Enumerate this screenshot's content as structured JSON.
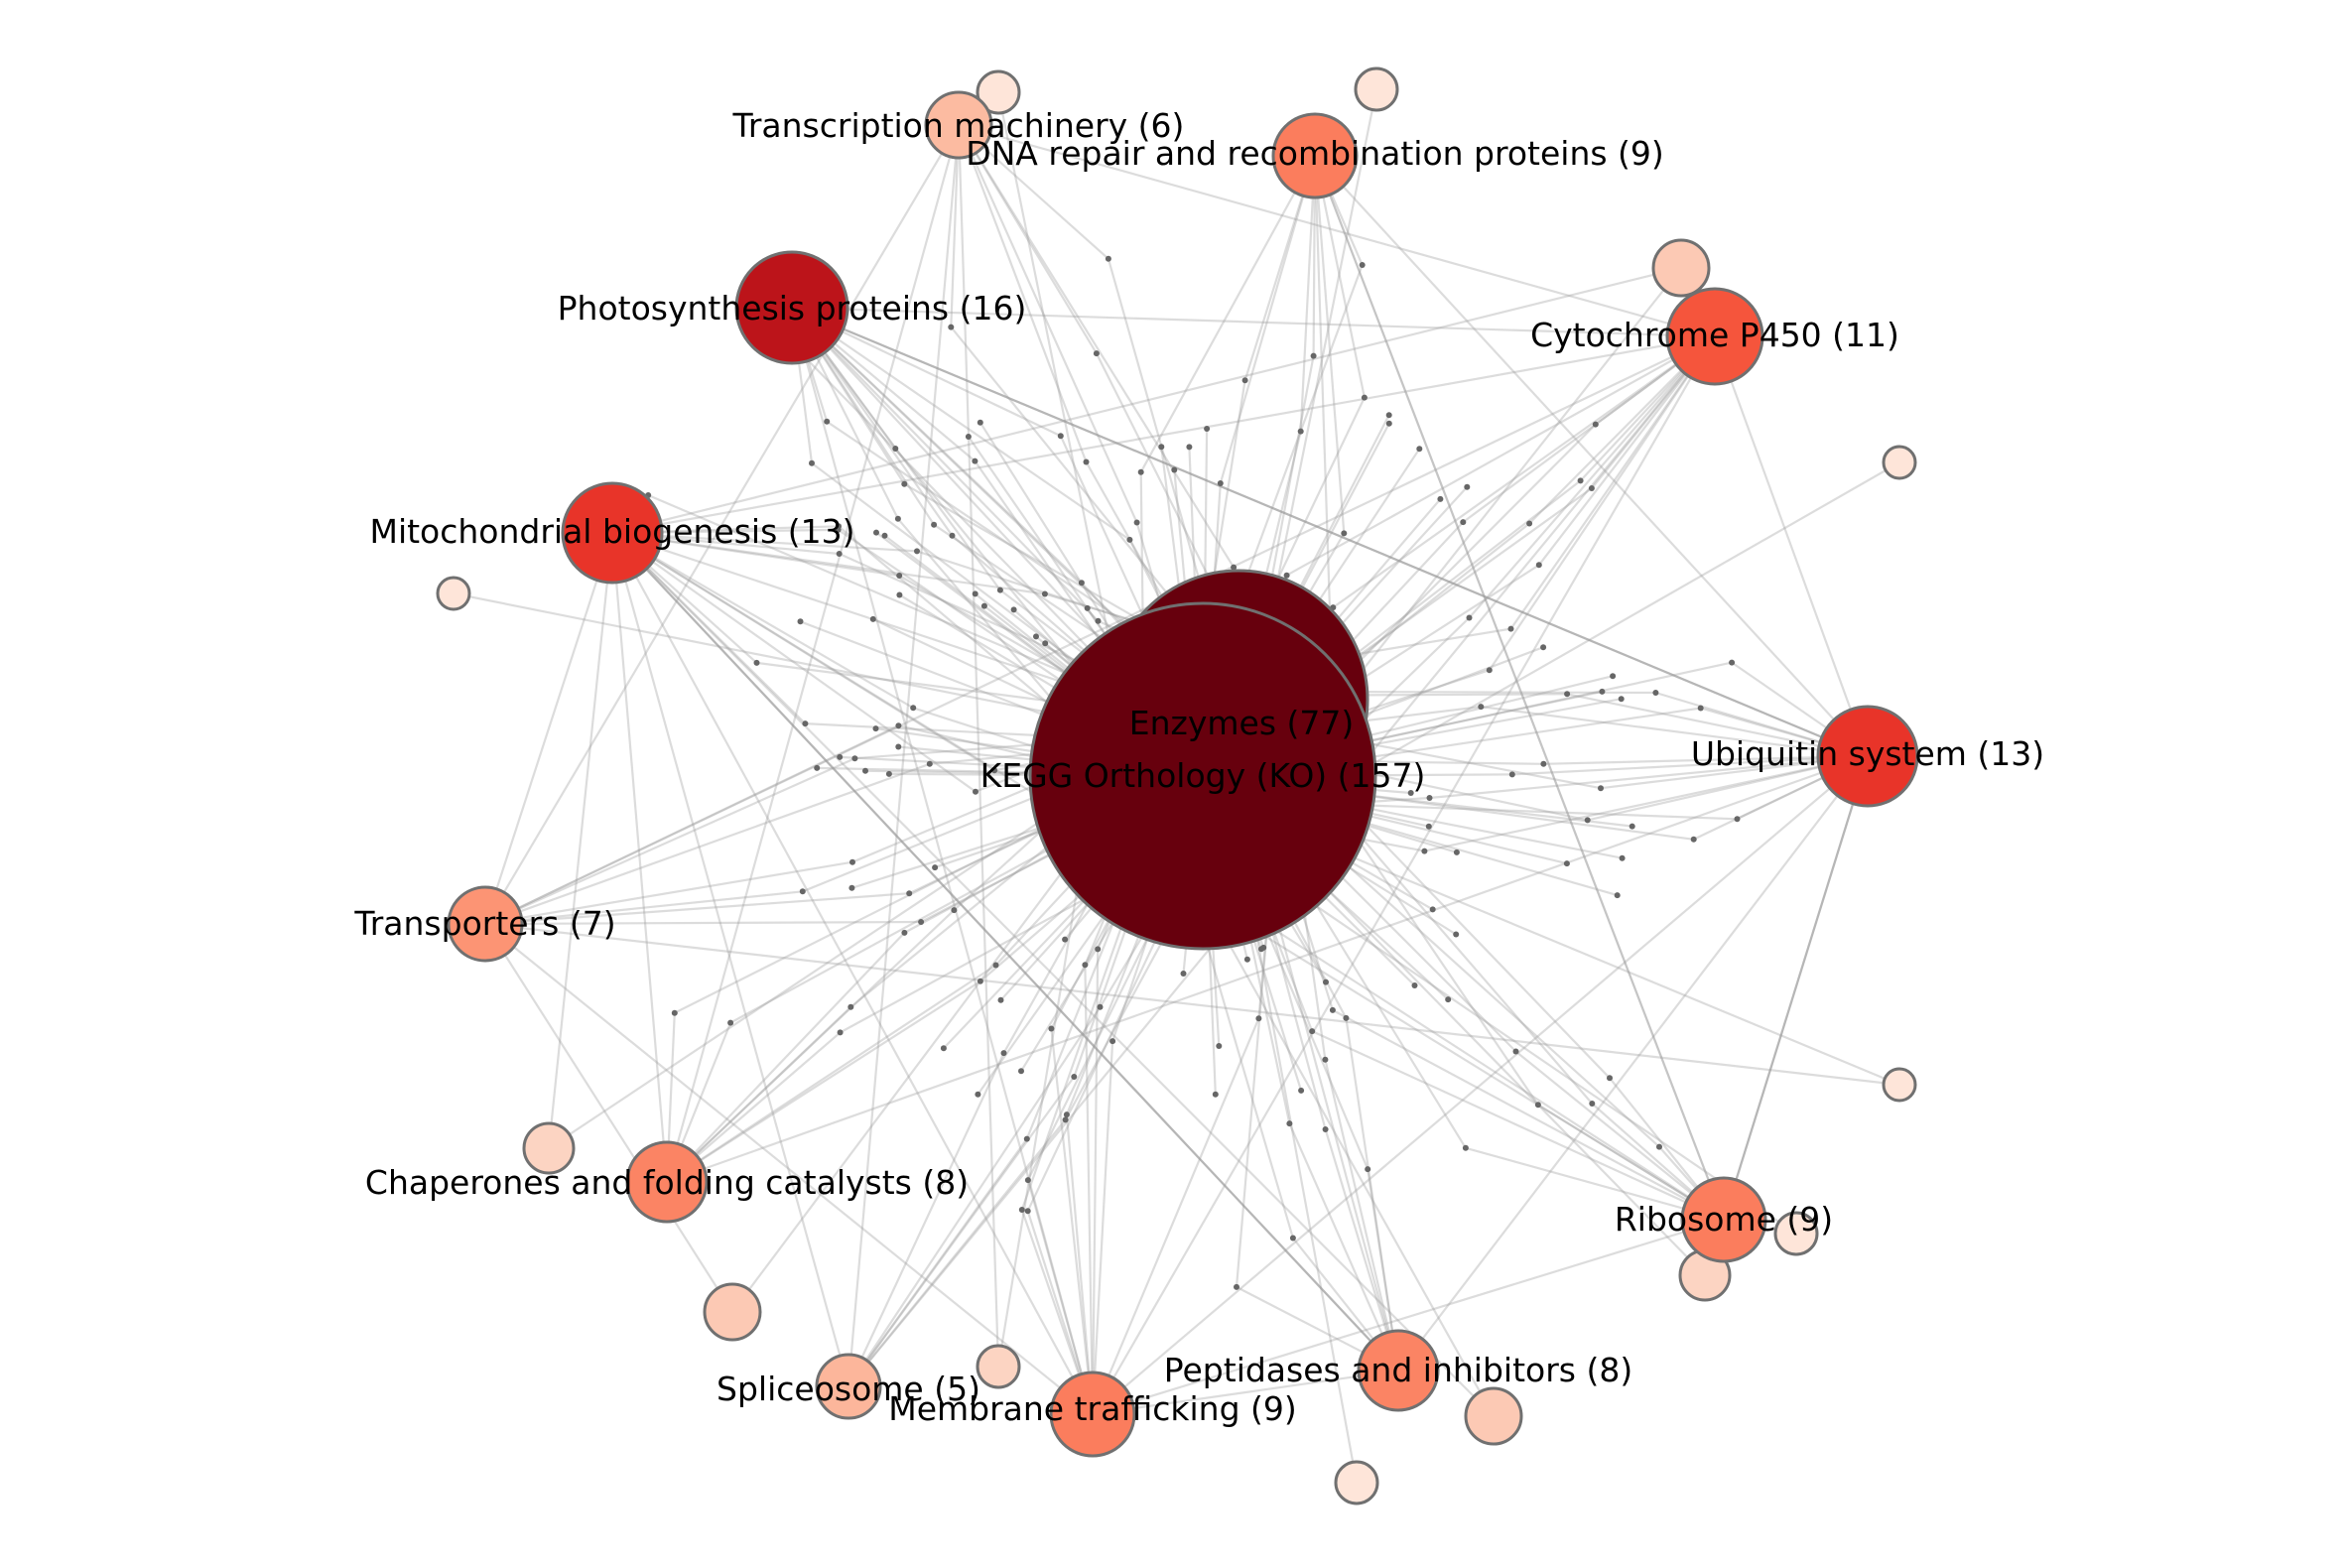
{
  "diagram": {
    "type": "network",
    "colors": {
      "background": "#ffffff",
      "edge": "#9a9a9a",
      "node_border": "#707070",
      "dot": "#666666"
    },
    "nodes": [
      {
        "id": "kegg",
        "label": "KEGG Orthology (KO) (157)",
        "count": 157,
        "color": "#67000d"
      },
      {
        "id": "enzymes",
        "label": "Enzymes (77)",
        "count": 77,
        "color": "#67000d"
      },
      {
        "id": "transcription",
        "label": "Transcription machinery (6)",
        "count": 6,
        "color": "#fcbba1"
      },
      {
        "id": "dna_repair",
        "label": "DNA repair and recombination proteins (9)",
        "count": 9,
        "color": "#fb7d5d"
      },
      {
        "id": "photosynthesis",
        "label": "Photosynthesis proteins (16)",
        "count": 16,
        "color": "#bc141a"
      },
      {
        "id": "cytochrome",
        "label": "Cytochrome P450 (11)",
        "count": 11,
        "color": "#f5553c"
      },
      {
        "id": "mitochondrial",
        "label": "Mitochondrial biogenesis (13)",
        "count": 13,
        "color": "#e83429"
      },
      {
        "id": "ubiquitin",
        "label": "Ubiquitin system (13)",
        "count": 13,
        "color": "#e83429"
      },
      {
        "id": "transporters",
        "label": "Transporters (7)",
        "count": 7,
        "color": "#fc9474"
      },
      {
        "id": "chaperones",
        "label": "Chaperones and folding catalysts (8)",
        "count": 8,
        "color": "#fb8464"
      },
      {
        "id": "ribosome",
        "label": "Ribosome (9)",
        "count": 9,
        "color": "#fb7d5d"
      },
      {
        "id": "peptidases",
        "label": "Peptidases and inhibitors (8)",
        "count": 8,
        "color": "#fb8464"
      },
      {
        "id": "spliceosome",
        "label": "Spliceosome (5)",
        "count": 5,
        "color": "#fcb69b"
      },
      {
        "id": "membrane",
        "label": "Membrane trafficking (9)",
        "count": 9,
        "color": "#fb7d5d"
      }
    ],
    "minor_nodes": [
      {
        "id": "m1",
        "color": "#fee5d9"
      },
      {
        "id": "m2",
        "color": "#fee5d9"
      },
      {
        "id": "m3",
        "color": "#fcc9b4"
      },
      {
        "id": "m4",
        "color": "#fee5d9"
      },
      {
        "id": "m5",
        "color": "#fee5d9"
      },
      {
        "id": "m6",
        "color": "#fee5d9"
      },
      {
        "id": "m7",
        "color": "#fcd4c2"
      },
      {
        "id": "m8",
        "color": "#fcc9b4"
      },
      {
        "id": "m9",
        "color": "#fcd4c2"
      },
      {
        "id": "m10",
        "color": "#fee5d9"
      },
      {
        "id": "m11",
        "color": "#fee5d9"
      },
      {
        "id": "m12",
        "color": "#fcc9b4"
      },
      {
        "id": "m13",
        "color": "#fcd4c2"
      }
    ]
  }
}
